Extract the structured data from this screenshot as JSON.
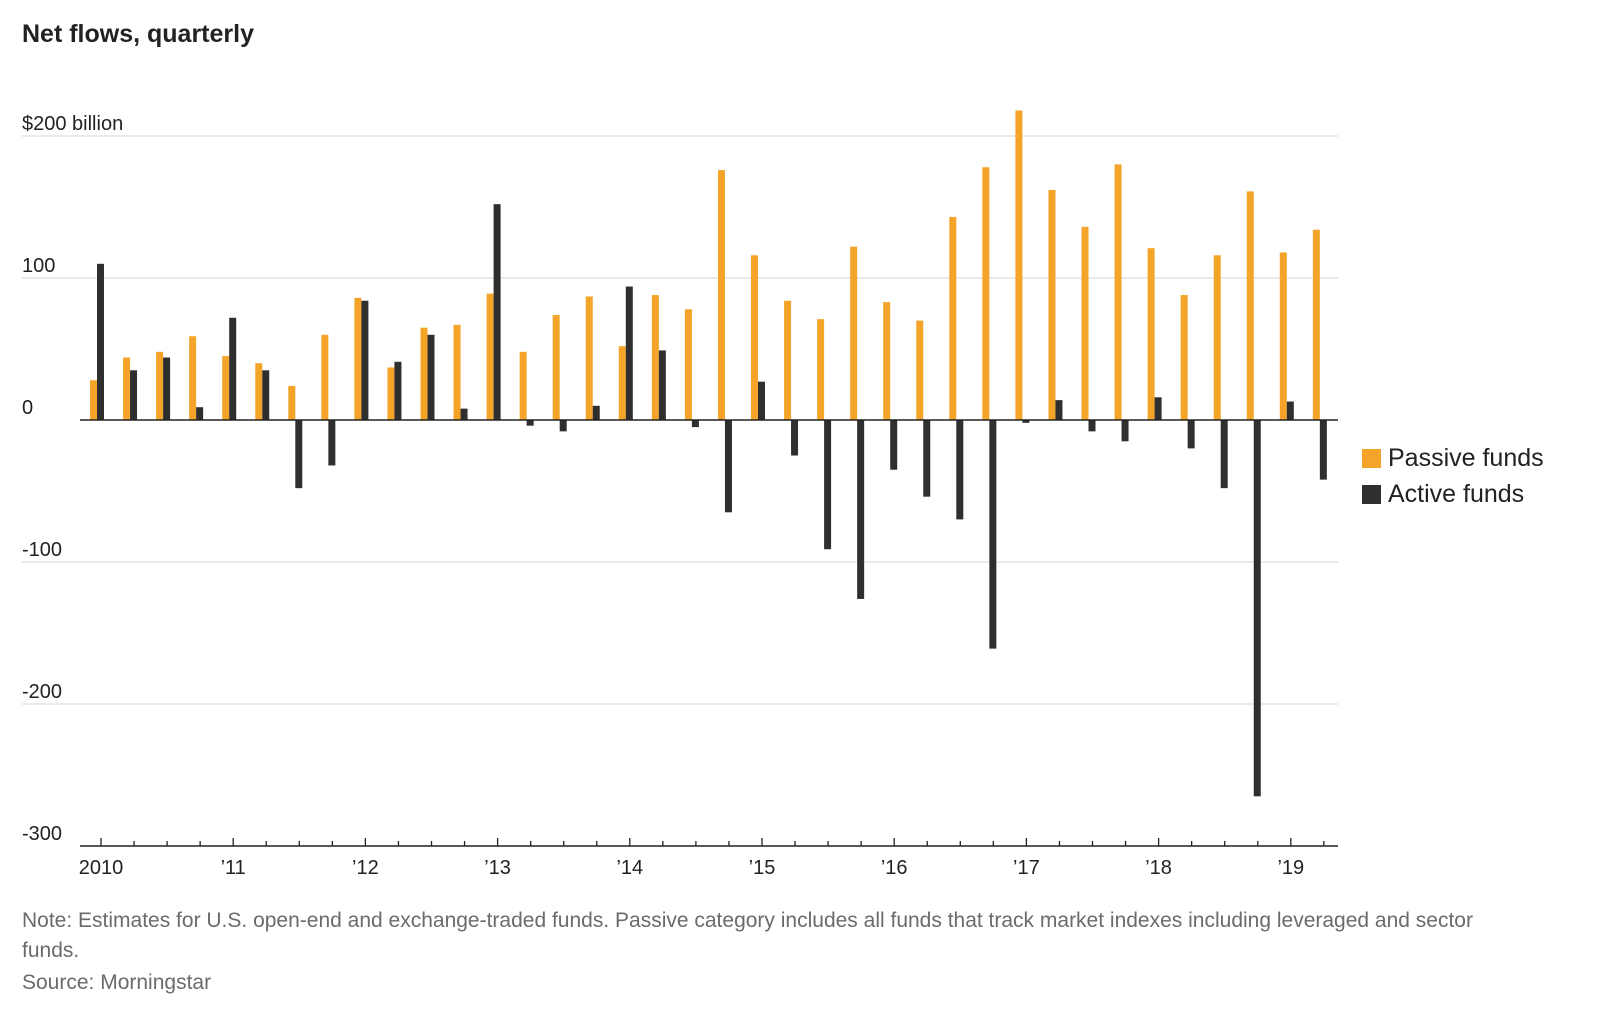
{
  "title": "Net flows, quarterly",
  "note": "Note: Estimates for U.S. open-end and exchange-traded funds. Passive category includes all funds that track market indexes including leveraged and sector funds.",
  "source": "Source: Morningstar",
  "colors": {
    "passive": "#f5a42a",
    "active": "#2f2f2f"
  },
  "chart_data": {
    "type": "bar",
    "title": "Net flows, quarterly",
    "ylim": [
      -300,
      200
    ],
    "yticks": [
      {
        "value": 200,
        "label": "$200 billion"
      },
      {
        "value": 100,
        "label": "100"
      },
      {
        "value": 0,
        "label": "0"
      },
      {
        "value": -100,
        "label": "-100"
      },
      {
        "value": -200,
        "label": "-200"
      },
      {
        "value": -300,
        "label": "-300"
      }
    ],
    "xtick_labels": [
      {
        "label": "2010",
        "quarter_index": 0
      },
      {
        "label": "’11",
        "quarter_index": 4
      },
      {
        "label": "’12",
        "quarter_index": 8
      },
      {
        "label": "’13",
        "quarter_index": 12
      },
      {
        "label": "’14",
        "quarter_index": 16
      },
      {
        "label": "’15",
        "quarter_index": 20
      },
      {
        "label": "’16",
        "quarter_index": 24
      },
      {
        "label": "’17",
        "quarter_index": 28
      },
      {
        "label": "’18",
        "quarter_index": 32
      },
      {
        "label": "’19",
        "quarter_index": 36
      }
    ],
    "categories": [
      "2010 Q1",
      "2010 Q2",
      "2010 Q3",
      "2010 Q4",
      "2011 Q1",
      "2011 Q2",
      "2011 Q3",
      "2011 Q4",
      "2012 Q1",
      "2012 Q2",
      "2012 Q3",
      "2012 Q4",
      "2013 Q1",
      "2013 Q2",
      "2013 Q3",
      "2013 Q4",
      "2014 Q1",
      "2014 Q2",
      "2014 Q3",
      "2014 Q4",
      "2015 Q1",
      "2015 Q2",
      "2015 Q3",
      "2015 Q4",
      "2016 Q1",
      "2016 Q2",
      "2016 Q3",
      "2016 Q4",
      "2017 Q1",
      "2017 Q2",
      "2017 Q3",
      "2017 Q4",
      "2018 Q1",
      "2018 Q2",
      "2018 Q3",
      "2018 Q4",
      "2019 Q1",
      "2019 Q2"
    ],
    "series": [
      {
        "name": "Passive funds",
        "values": [
          28,
          44,
          48,
          59,
          45,
          40,
          24,
          60,
          86,
          37,
          65,
          67,
          89,
          48,
          74,
          87,
          52,
          88,
          78,
          176,
          116,
          84,
          71,
          122,
          83,
          70,
          143,
          178,
          218,
          162,
          136,
          180,
          121,
          88,
          116,
          161,
          118,
          134
        ]
      },
      {
        "name": "Active funds",
        "values": [
          110,
          35,
          44,
          9,
          72,
          35,
          -48,
          -32,
          84,
          41,
          60,
          8,
          152,
          -4,
          -8,
          10,
          94,
          49,
          -5,
          -65,
          27,
          -25,
          -91,
          -126,
          -35,
          -54,
          -70,
          -161,
          -2,
          14,
          -8,
          -15,
          16,
          -20,
          -48,
          -265,
          13,
          -42
        ]
      }
    ],
    "legend": "right",
    "grid": true
  }
}
